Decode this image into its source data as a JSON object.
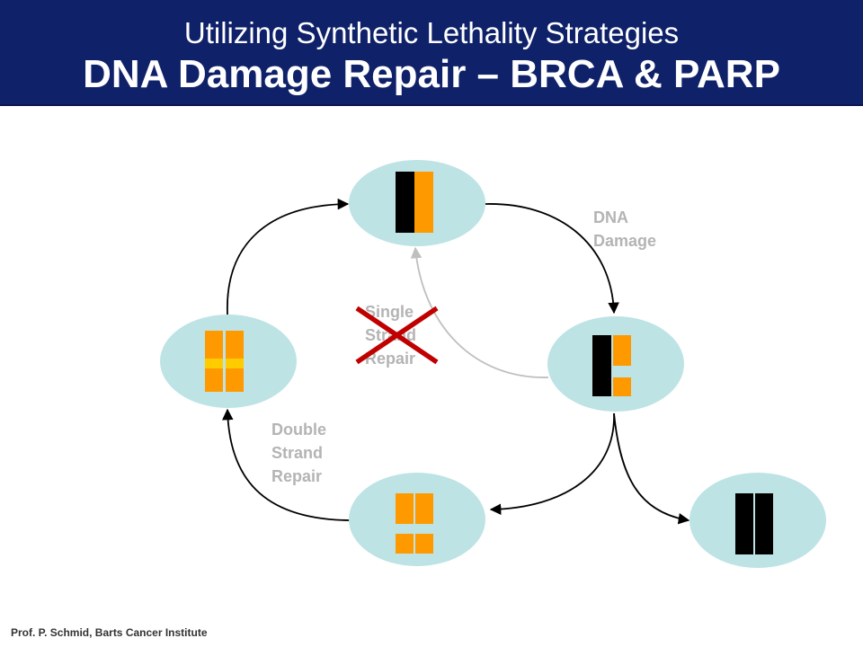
{
  "header": {
    "subtitle": "Utilizing Synthetic Lethality Strategies",
    "title": "DNA Damage Repair – BRCA & PARP"
  },
  "labels": {
    "dna_damage": [
      "DNA",
      "Damage"
    ],
    "single_strand_repair": [
      "Single",
      "Strand",
      "Repair"
    ],
    "double_strand_repair": [
      "Double",
      "Strand",
      "Repair"
    ]
  },
  "footer": "Prof. P. Schmid, Barts Cancer Institute",
  "colors": {
    "header_bg": "#0f2169",
    "node_fill": "#bde3e4",
    "strand_orange": "#ff9900",
    "strand_black": "#000000",
    "repair_yellow": "#ffcc00",
    "cross_red": "#c00000",
    "arrow_gray": "#bfbfbf"
  }
}
